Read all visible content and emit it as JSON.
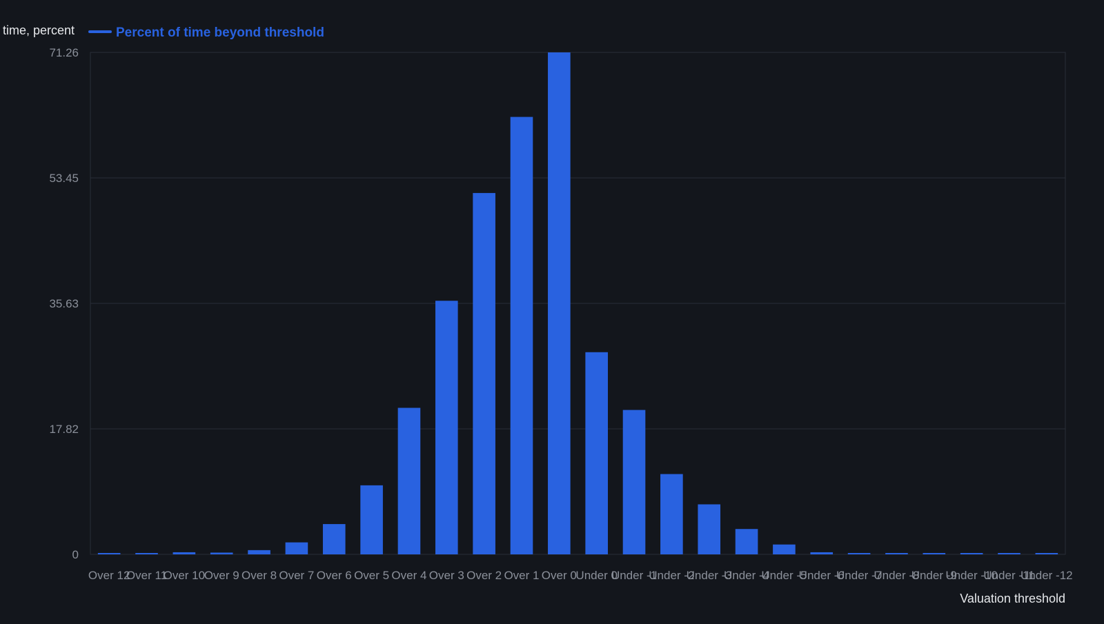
{
  "chart_data": {
    "type": "bar",
    "ylabel": "time, percent",
    "xlabel": "Valuation threshold",
    "legend": {
      "position": "top-left",
      "entries": [
        "Percent of time beyond threshold"
      ]
    },
    "grid": true,
    "ylim": [
      0,
      71.26
    ],
    "yticks": [
      "0",
      "17.82",
      "35.63",
      "53.45",
      "71.26"
    ],
    "categories": [
      "Over 12",
      "Over 11",
      "Over 10",
      "Over 9",
      "Over 8",
      "Over 7",
      "Over 6",
      "Over 5",
      "Over 4",
      "Over 3",
      "Over 2",
      "Over 1",
      "Over 0",
      "Under 0",
      "Under -1",
      "Under -2",
      "Under -3",
      "Under -4",
      "Under -5",
      "Under -6",
      "Under -7",
      "Under -8",
      "Under -9",
      "Under -10",
      "Under -11",
      "Under -12"
    ],
    "series": [
      {
        "name": "Percent of time beyond threshold",
        "color": "#2962e0",
        "values": [
          0.1,
          0.1,
          0.3,
          0.25,
          0.6,
          1.7,
          4.3,
          9.8,
          20.8,
          36.0,
          51.3,
          62.1,
          71.26,
          28.7,
          20.5,
          11.4,
          7.1,
          3.6,
          1.4,
          0.3,
          0.1,
          0.1,
          0.1,
          0.1,
          0.1,
          0.1
        ]
      }
    ],
    "colors": {
      "background": "#13161c",
      "grid": "#2a2e37",
      "axis_text": "#8b909a",
      "label_text": "#e6e8eb"
    }
  }
}
